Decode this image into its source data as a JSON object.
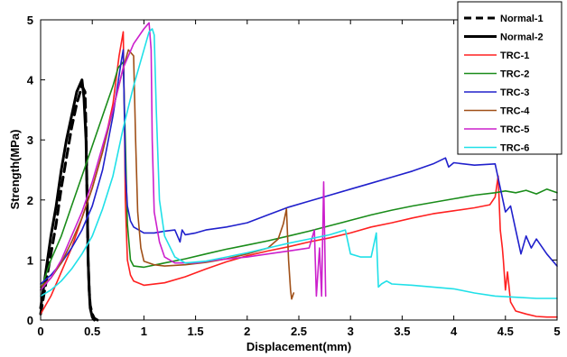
{
  "chart_data": {
    "type": "line",
    "xlabel": "Displacement(mm)",
    "ylabel": "Strength(MPa)",
    "xlim": [
      0,
      5
    ],
    "ylim": [
      0,
      5
    ],
    "xticks": [
      0,
      0.5,
      1,
      1.5,
      2,
      2.5,
      3,
      3.5,
      4,
      4.5,
      5
    ],
    "xtick_labels": [
      "0",
      "0.5",
      "1",
      "1.5",
      "2",
      "2.5",
      "3",
      "3.5",
      "4",
      "4.5",
      "5"
    ],
    "yticks": [
      0,
      1,
      2,
      3,
      4,
      5
    ],
    "ytick_labels": [
      "0",
      "1",
      "2",
      "3",
      "4",
      "5"
    ],
    "grid": false,
    "legend_position": "top-right",
    "series": [
      {
        "name": "Normal-1",
        "color": "#000000",
        "dash": true,
        "x": [
          0,
          0.05,
          0.1,
          0.15,
          0.2,
          0.25,
          0.3,
          0.35,
          0.4,
          0.43,
          0.44,
          0.45,
          0.46,
          0.47,
          0.48,
          0.5,
          0.52,
          0.55
        ],
        "y": [
          0.1,
          0.6,
          1.1,
          1.6,
          2.2,
          2.7,
          3.2,
          3.6,
          3.9,
          3.8,
          3.2,
          2.0,
          1.0,
          0.5,
          0.25,
          0.1,
          0.03,
          0.0
        ]
      },
      {
        "name": "Normal-2",
        "color": "#000000",
        "dash": false,
        "x": [
          0,
          0.05,
          0.1,
          0.15,
          0.2,
          0.25,
          0.3,
          0.35,
          0.4,
          0.42,
          0.44,
          0.45,
          0.46,
          0.47,
          0.48,
          0.5,
          0.52
        ],
        "y": [
          0.2,
          0.8,
          1.4,
          1.9,
          2.5,
          3.0,
          3.4,
          3.8,
          4.0,
          3.7,
          3.0,
          2.0,
          1.0,
          0.5,
          0.2,
          0.05,
          0.0
        ]
      },
      {
        "name": "TRC-1",
        "color": "#ff2020",
        "dash": false,
        "x": [
          0,
          0.1,
          0.2,
          0.3,
          0.4,
          0.5,
          0.6,
          0.7,
          0.76,
          0.8,
          0.81,
          0.82,
          0.84,
          0.87,
          0.9,
          1.0,
          1.2,
          1.4,
          1.6,
          1.8,
          2.0,
          2.2,
          2.4,
          2.6,
          2.8,
          3.0,
          3.2,
          3.4,
          3.6,
          3.8,
          4.0,
          4.2,
          4.35,
          4.4,
          4.43,
          4.45,
          4.47,
          4.48,
          4.5,
          4.52,
          4.55,
          4.6,
          4.7,
          4.8,
          4.9,
          5.0
        ],
        "y": [
          0.1,
          0.4,
          0.8,
          1.2,
          1.7,
          2.2,
          2.8,
          3.6,
          4.4,
          4.8,
          3.5,
          2.0,
          1.0,
          0.75,
          0.65,
          0.58,
          0.62,
          0.72,
          0.85,
          0.97,
          1.07,
          1.15,
          1.22,
          1.3,
          1.37,
          1.45,
          1.55,
          1.62,
          1.7,
          1.77,
          1.82,
          1.87,
          1.92,
          2.05,
          2.4,
          1.5,
          1.2,
          1.0,
          0.5,
          0.8,
          0.3,
          0.15,
          0.1,
          0.06,
          0.05,
          0.05
        ]
      },
      {
        "name": "TRC-2",
        "color": "#1a8c1a",
        "dash": false,
        "x": [
          0,
          0.1,
          0.2,
          0.3,
          0.4,
          0.5,
          0.6,
          0.7,
          0.75,
          0.8,
          0.82,
          0.84,
          0.87,
          0.9,
          1.0,
          1.2,
          1.4,
          1.6,
          1.8,
          2.0,
          2.2,
          2.4,
          2.6,
          2.8,
          3.0,
          3.2,
          3.4,
          3.6,
          3.8,
          4.0,
          4.2,
          4.4,
          4.5,
          4.6,
          4.7,
          4.8,
          4.9,
          5.0
        ],
        "y": [
          0.5,
          1.0,
          1.4,
          1.9,
          2.4,
          2.9,
          3.4,
          3.9,
          4.2,
          4.3,
          3.0,
          1.6,
          1.0,
          0.9,
          0.88,
          0.95,
          1.02,
          1.1,
          1.18,
          1.25,
          1.32,
          1.4,
          1.48,
          1.57,
          1.66,
          1.75,
          1.83,
          1.9,
          1.96,
          2.02,
          2.08,
          2.12,
          2.15,
          2.12,
          2.16,
          2.1,
          2.18,
          2.12
        ]
      },
      {
        "name": "TRC-3",
        "color": "#2020cc",
        "dash": false,
        "x": [
          0,
          0.1,
          0.2,
          0.3,
          0.4,
          0.5,
          0.6,
          0.7,
          0.78,
          0.8,
          0.81,
          0.82,
          0.84,
          0.87,
          0.9,
          0.95,
          1.0,
          1.1,
          1.2,
          1.3,
          1.35,
          1.37,
          1.4,
          1.5,
          1.6,
          1.8,
          2.0,
          2.2,
          2.4,
          2.6,
          2.8,
          3.0,
          3.2,
          3.4,
          3.6,
          3.8,
          3.92,
          3.95,
          4.0,
          4.2,
          4.4,
          4.45,
          4.5,
          4.55,
          4.6,
          4.65,
          4.7,
          4.75,
          4.8,
          4.9,
          5.0
        ],
        "y": [
          0.6,
          0.75,
          0.95,
          1.2,
          1.5,
          1.9,
          2.5,
          3.4,
          4.3,
          4.5,
          3.5,
          2.5,
          1.9,
          1.65,
          1.55,
          1.5,
          1.45,
          1.45,
          1.48,
          1.5,
          1.3,
          1.5,
          1.42,
          1.45,
          1.5,
          1.55,
          1.62,
          1.75,
          1.88,
          1.98,
          2.08,
          2.18,
          2.28,
          2.38,
          2.48,
          2.6,
          2.7,
          2.55,
          2.62,
          2.58,
          2.6,
          2.2,
          1.8,
          1.9,
          1.5,
          1.1,
          1.4,
          1.2,
          1.35,
          1.1,
          0.9
        ]
      },
      {
        "name": "TRC-4",
        "color": "#a05018",
        "dash": false,
        "x": [
          0,
          0.1,
          0.2,
          0.3,
          0.4,
          0.5,
          0.6,
          0.7,
          0.8,
          0.85,
          0.9,
          0.92,
          0.94,
          0.97,
          1.0,
          1.1,
          1.2,
          1.4,
          1.6,
          1.8,
          2.0,
          2.2,
          2.3,
          2.35,
          2.38,
          2.4,
          2.42,
          2.43,
          2.45
        ],
        "y": [
          0.55,
          0.7,
          0.95,
          1.3,
          1.7,
          2.2,
          2.8,
          3.5,
          4.2,
          4.5,
          4.4,
          3.0,
          1.8,
          1.2,
          0.98,
          0.92,
          0.9,
          0.92,
          0.96,
          1.02,
          1.1,
          1.2,
          1.35,
          1.6,
          1.85,
          1.0,
          0.5,
          0.35,
          0.45
        ]
      },
      {
        "name": "TRC-5",
        "color": "#cc20cc",
        "dash": false,
        "x": [
          0,
          0.1,
          0.2,
          0.3,
          0.4,
          0.5,
          0.6,
          0.7,
          0.8,
          0.9,
          1.0,
          1.05,
          1.07,
          1.08,
          1.1,
          1.15,
          1.2,
          1.3,
          1.5,
          1.7,
          2.0,
          2.2,
          2.4,
          2.6,
          2.65,
          2.67,
          2.7,
          2.72,
          2.74,
          2.76
        ],
        "y": [
          0.5,
          0.7,
          1.0,
          1.4,
          1.8,
          2.3,
          2.9,
          3.5,
          4.2,
          4.6,
          4.85,
          4.95,
          4.5,
          3.0,
          1.8,
          1.3,
          1.05,
          0.95,
          0.95,
          1.0,
          1.05,
          1.1,
          1.15,
          1.2,
          1.5,
          0.4,
          1.2,
          0.4,
          2.3,
          0.4
        ]
      },
      {
        "name": "TRC-6",
        "color": "#20e0e8",
        "dash": false,
        "x": [
          0,
          0.1,
          0.2,
          0.3,
          0.4,
          0.5,
          0.6,
          0.7,
          0.8,
          0.9,
          1.0,
          1.05,
          1.08,
          1.1,
          1.12,
          1.15,
          1.2,
          1.3,
          1.4,
          1.6,
          1.8,
          2.0,
          2.2,
          2.4,
          2.6,
          2.8,
          2.95,
          3.0,
          3.1,
          3.2,
          3.25,
          3.27,
          3.3,
          3.35,
          3.4,
          3.6,
          3.8,
          4.0,
          4.2,
          4.4,
          4.6,
          4.8,
          5.0
        ],
        "y": [
          0.4,
          0.5,
          0.65,
          0.85,
          1.1,
          1.4,
          1.85,
          2.4,
          3.2,
          3.9,
          4.5,
          4.8,
          4.85,
          4.75,
          3.5,
          2.0,
          1.4,
          1.05,
          0.95,
          0.98,
          1.05,
          1.12,
          1.2,
          1.28,
          1.35,
          1.42,
          1.5,
          1.1,
          1.05,
          1.05,
          1.45,
          0.55,
          0.6,
          0.65,
          0.6,
          0.58,
          0.55,
          0.52,
          0.45,
          0.4,
          0.38,
          0.36,
          0.36
        ]
      }
    ]
  }
}
